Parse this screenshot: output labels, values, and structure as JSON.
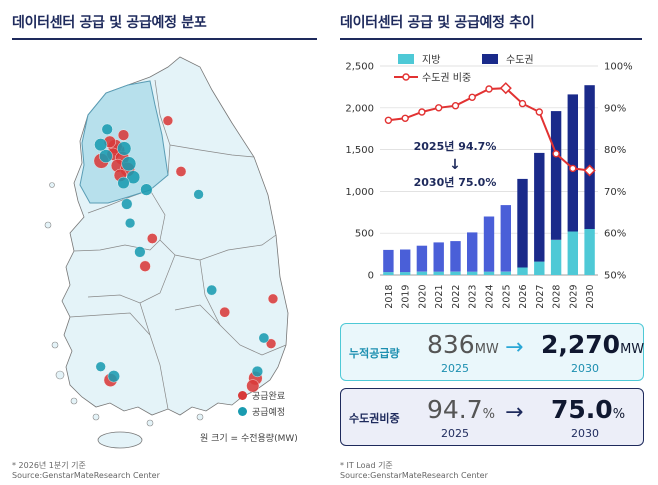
{
  "left": {
    "title": "데이터센터 공급 및 공급예정 분포",
    "legend": [
      {
        "label": "공급완료",
        "color": "#d83a3a"
      },
      {
        "label": "공급예정",
        "color": "#1a9bb0"
      }
    ],
    "size_note": "원 크기 = 수전용량(MW)",
    "footnote": "* 2026년 1분기 기준",
    "source": "Source:GenstarMateResearch Center"
  },
  "right": {
    "title": "데이터센터 공급 및 공급예정 추이",
    "footnote": "* IT Load 기준",
    "source": "Source:GenstarMateResearch Center",
    "annotation_top": "2025년 94.7%",
    "annotation_arrow": "↓",
    "annotation_bottom": "2030년 75.0%"
  },
  "chart_data": {
    "type": "bar",
    "categories": [
      "2018",
      "2019",
      "2020",
      "2021",
      "2022",
      "2023",
      "2024",
      "2025",
      "2026",
      "2027",
      "2028",
      "2029",
      "2030"
    ],
    "series": [
      {
        "name": "지방",
        "color": "#4ec9d6",
        "values": [
          35,
          35,
          40,
          40,
          40,
          40,
          40,
          40,
          90,
          160,
          420,
          520,
          550
        ]
      },
      {
        "name": "수도권",
        "color": "#1a2a8a",
        "values": [
          265,
          270,
          310,
          350,
          365,
          470,
          660,
          796,
          1060,
          1300,
          1540,
          1640,
          1720
        ]
      }
    ],
    "line": {
      "name": "수도권 비중",
      "color": "#e23232",
      "values": [
        87,
        87.5,
        89,
        90,
        90.5,
        92.5,
        94.5,
        94.7,
        91,
        89,
        79,
        75.5,
        75.0
      ]
    },
    "y_left": {
      "ylim": [
        0,
        2500
      ],
      "ticks": [
        "0",
        "500",
        "1,000",
        "1,500",
        "2,000",
        "2,500"
      ]
    },
    "y_right": {
      "ylim": [
        50,
        100
      ],
      "ticks": [
        "50%",
        "60%",
        "70%",
        "80%",
        "90%",
        "100%"
      ]
    },
    "grid": true,
    "legend_position": "top-left"
  },
  "cards": [
    {
      "label": "누적공급량",
      "from_value": "836",
      "from_unit": "MW",
      "from_year": "2025",
      "to_value": "2,270",
      "to_unit": "MW",
      "to_year": "2030",
      "arrow": "→"
    },
    {
      "label": "수도권비중",
      "from_value": "94.7",
      "from_unit": "%",
      "from_year": "2025",
      "to_value": "75.0",
      "to_unit": "%",
      "to_year": "2030",
      "arrow": "→"
    }
  ],
  "map_points": [
    {
      "type": "공급완료",
      "lat": 37.56,
      "lon": 126.97,
      "mw": 30
    },
    {
      "type": "공급완료",
      "lat": 37.6,
      "lon": 126.92,
      "mw": 40
    },
    {
      "type": "공급완료",
      "lat": 37.52,
      "lon": 126.89,
      "mw": 25
    },
    {
      "type": "공급완료",
      "lat": 37.48,
      "lon": 127.03,
      "mw": 35
    },
    {
      "type": "공급완료",
      "lat": 37.45,
      "lon": 126.71,
      "mw": 45
    },
    {
      "type": "공급완료",
      "lat": 37.4,
      "lon": 126.96,
      "mw": 30
    },
    {
      "type": "공급완료",
      "lat": 37.36,
      "lon": 127.11,
      "mw": 40
    },
    {
      "type": "공급완료",
      "lat": 37.3,
      "lon": 127.0,
      "mw": 25
    },
    {
      "type": "공급완료",
      "lat": 37.65,
      "lon": 126.84,
      "mw": 20
    },
    {
      "type": "공급완료",
      "lat": 37.72,
      "lon": 127.05,
      "mw": 15
    },
    {
      "type": "공급완료",
      "lat": 37.87,
      "lon": 127.73,
      "mw": 10
    },
    {
      "type": "공급완료",
      "lat": 37.34,
      "lon": 127.93,
      "mw": 12
    },
    {
      "type": "공급완료",
      "lat": 36.35,
      "lon": 127.38,
      "mw": 15
    },
    {
      "type": "공급완료",
      "lat": 36.64,
      "lon": 127.49,
      "mw": 12
    },
    {
      "type": "공급완료",
      "lat": 35.16,
      "lon": 126.85,
      "mw": 30
    },
    {
      "type": "공급완료",
      "lat": 35.87,
      "lon": 128.6,
      "mw": 12
    },
    {
      "type": "공급완료",
      "lat": 35.18,
      "lon": 129.07,
      "mw": 35
    },
    {
      "type": "공급완료",
      "lat": 35.1,
      "lon": 129.03,
      "mw": 25
    },
    {
      "type": "공급완료",
      "lat": 35.54,
      "lon": 129.31,
      "mw": 10
    },
    {
      "type": "공급완료",
      "lat": 36.01,
      "lon": 129.34,
      "mw": 10
    },
    {
      "type": "공급예정",
      "lat": 37.58,
      "lon": 127.06,
      "mw": 35
    },
    {
      "type": "공급예정",
      "lat": 37.5,
      "lon": 126.78,
      "mw": 30
    },
    {
      "type": "공급예정",
      "lat": 37.42,
      "lon": 127.13,
      "mw": 40
    },
    {
      "type": "공급예정",
      "lat": 37.28,
      "lon": 127.2,
      "mw": 30
    },
    {
      "type": "공급예정",
      "lat": 37.22,
      "lon": 127.05,
      "mw": 20
    },
    {
      "type": "공급예정",
      "lat": 37.62,
      "lon": 126.7,
      "mw": 25
    },
    {
      "type": "공급예정",
      "lat": 37.15,
      "lon": 127.4,
      "mw": 20
    },
    {
      "type": "공급예정",
      "lat": 37.0,
      "lon": 127.1,
      "mw": 15
    },
    {
      "type": "공급예정",
      "lat": 37.78,
      "lon": 126.8,
      "mw": 15
    },
    {
      "type": "공급예정",
      "lat": 36.5,
      "lon": 127.3,
      "mw": 15
    },
    {
      "type": "공급예정",
      "lat": 36.8,
      "lon": 127.15,
      "mw": 10
    },
    {
      "type": "공급예정",
      "lat": 35.2,
      "lon": 126.9,
      "mw": 20
    },
    {
      "type": "공급예정",
      "lat": 35.3,
      "lon": 126.7,
      "mw": 10
    },
    {
      "type": "공급예정",
      "lat": 36.1,
      "lon": 128.4,
      "mw": 12
    },
    {
      "type": "공급예정",
      "lat": 35.6,
      "lon": 129.2,
      "mw": 12
    },
    {
      "type": "공급예정",
      "lat": 35.25,
      "lon": 129.1,
      "mw": 15
    },
    {
      "type": "공급예정",
      "lat": 37.1,
      "lon": 128.2,
      "mw": 10
    }
  ]
}
